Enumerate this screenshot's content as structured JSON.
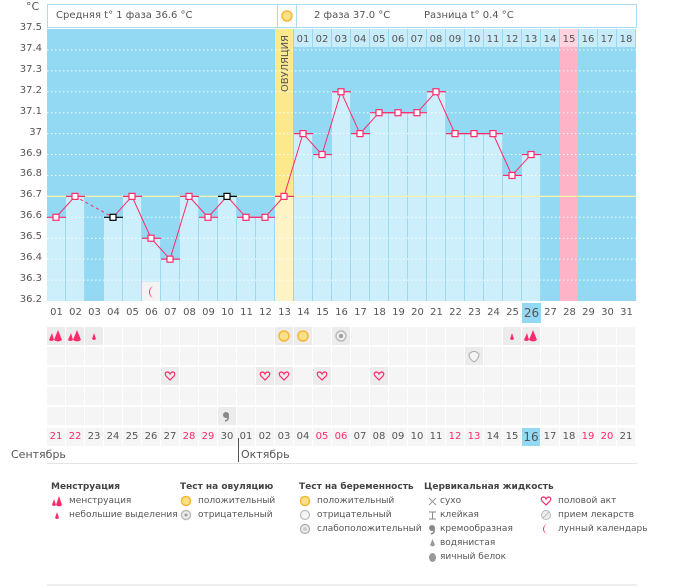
{
  "axis": {
    "unit": "°С",
    "ticks": [
      "37.5",
      "37.4",
      "37.3",
      "37.2",
      "37.1",
      "37",
      "36.9",
      "36.8",
      "36.7",
      "36.6",
      "36.5",
      "36.4",
      "36.3",
      "36.2"
    ],
    "ymin": 36.2,
    "ymax": 37.5,
    "coverline": 36.7
  },
  "header": {
    "phase1": "Средняя t° 1 фаза  36.6 °С",
    "phase2": "2 фаза  37.0 °С",
    "diff": "Разница t° 0.4 °С"
  },
  "ovulation_label": "ОВУЛЯЦИЯ",
  "ovulation_day": 13,
  "today_day": 26,
  "expected_period_day": 28,
  "colors": {
    "background": "#93d9f3",
    "bar": "#cdeefb",
    "line": "#ff2a6a",
    "ovulation": "#fce98e",
    "period": "#ffb3c6",
    "weekend": "#ff2a6a"
  },
  "phase2_numbers": [
    "01",
    "02",
    "03",
    "04",
    "05",
    "06",
    "07",
    "08",
    "09",
    "10",
    "11",
    "12",
    "13",
    "14",
    "15",
    "16",
    "17",
    "18"
  ],
  "days": [
    {
      "cycle": "01",
      "date": "21",
      "weekend": true,
      "temp": 36.6,
      "row1": "menstruation"
    },
    {
      "cycle": "02",
      "date": "22",
      "weekend": true,
      "temp": 36.7,
      "row1": "menstruation"
    },
    {
      "cycle": "03",
      "date": "23",
      "temp": null,
      "row1": "spotting"
    },
    {
      "cycle": "04",
      "date": "24",
      "temp": 36.6,
      "excluded": true
    },
    {
      "cycle": "05",
      "date": "25",
      "temp": 36.7
    },
    {
      "cycle": "06",
      "date": "26",
      "temp": 36.5,
      "moon": true
    },
    {
      "cycle": "07",
      "date": "27",
      "temp": 36.4,
      "row3": "heart"
    },
    {
      "cycle": "08",
      "date": "28",
      "weekend": true,
      "temp": 36.7
    },
    {
      "cycle": "09",
      "date": "29",
      "weekend": true,
      "temp": 36.6
    },
    {
      "cycle": "10",
      "date": "30",
      "temp": 36.7,
      "excluded": true,
      "row5": "creamy"
    },
    {
      "cycle": "11",
      "date": "01",
      "temp": 36.6
    },
    {
      "cycle": "12",
      "date": "02",
      "temp": 36.6,
      "row3": "heart"
    },
    {
      "cycle": "13",
      "date": "03",
      "temp": 36.7,
      "row1": "ovulation-positive",
      "row3": "heart"
    },
    {
      "cycle": "14",
      "date": "04",
      "temp": 37.0,
      "row1": "ovulation-positive"
    },
    {
      "cycle": "15",
      "date": "05",
      "weekend": true,
      "temp": 36.9,
      "row3": "heart"
    },
    {
      "cycle": "16",
      "date": "06",
      "weekend": true,
      "temp": 37.2,
      "row1": "ovulation-negative"
    },
    {
      "cycle": "17",
      "date": "07",
      "temp": 37.0
    },
    {
      "cycle": "18",
      "date": "08",
      "temp": 37.1,
      "row3": "heart"
    },
    {
      "cycle": "19",
      "date": "09",
      "temp": 37.1
    },
    {
      "cycle": "20",
      "date": "10",
      "temp": 37.1
    },
    {
      "cycle": "21",
      "date": "11",
      "temp": 37.2
    },
    {
      "cycle": "22",
      "date": "12",
      "weekend": true,
      "temp": 37.0
    },
    {
      "cycle": "23",
      "date": "13",
      "weekend": true,
      "temp": 37.0,
      "row2": "pregnancy-negative"
    },
    {
      "cycle": "24",
      "date": "14",
      "temp": 37.0
    },
    {
      "cycle": "25",
      "date": "15",
      "temp": 36.8,
      "row1": "spotting"
    },
    {
      "cycle": "26",
      "date": "16",
      "temp": 36.9,
      "row1": "menstruation"
    },
    {
      "cycle": "27",
      "date": "17",
      "temp": null
    },
    {
      "cycle": "28",
      "date": "18",
      "temp": null
    },
    {
      "cycle": "29",
      "date": "19",
      "weekend": true,
      "temp": null
    },
    {
      "cycle": "30",
      "date": "20",
      "weekend": true,
      "temp": null
    },
    {
      "cycle": "31",
      "date": "21",
      "temp": null
    }
  ],
  "months": {
    "first": "Сентябрь",
    "second": "Октябрь"
  },
  "legend": {
    "menstruation": {
      "title": "Менструация",
      "items": [
        "менструация",
        "небольшие выделения"
      ]
    },
    "ovulation_test": {
      "title": "Тест на овуляцию",
      "items": [
        "положительный",
        "отрицательный"
      ]
    },
    "pregnancy_test": {
      "title": "Тест на беременность",
      "items": [
        "положительный",
        "отрицательный",
        "слабоположительный"
      ]
    },
    "cervical": {
      "title": "Цервикальная жидкость",
      "items": [
        "сухо",
        "клейкая",
        "кремообразная",
        "водянистая",
        "яичный белок"
      ]
    },
    "other": {
      "items": [
        "половой акт",
        "прием лекарств",
        "лунный календарь"
      ]
    }
  }
}
